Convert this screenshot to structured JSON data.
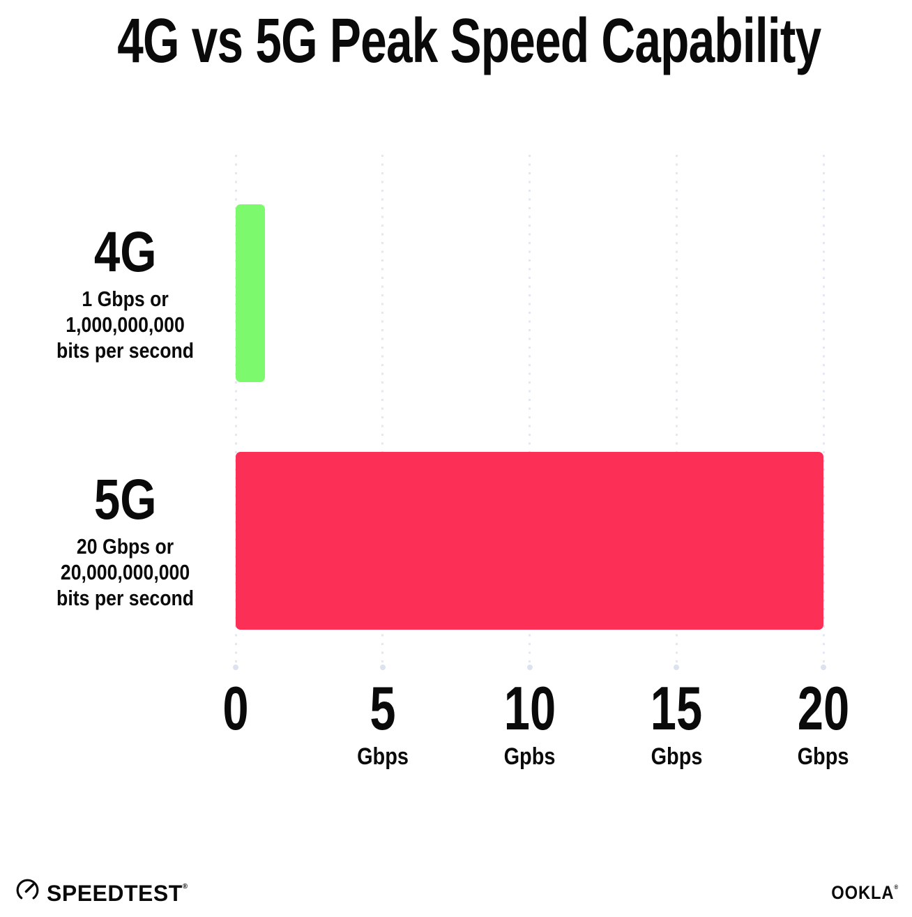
{
  "title": "4G vs 5G Peak Speed Capability",
  "chart_data": {
    "type": "bar",
    "orientation": "horizontal",
    "title": "4G vs 5G Peak Speed Capability",
    "categories": [
      "4G",
      "5G"
    ],
    "values": [
      1,
      20
    ],
    "value_unit": "Gbps",
    "xlim": [
      0,
      20
    ],
    "xticks": [
      {
        "value": "0",
        "unit": ""
      },
      {
        "value": "5",
        "unit": "Gbps"
      },
      {
        "value": "10",
        "unit": "Gpbs"
      },
      {
        "value": "15",
        "unit": "Gbps"
      },
      {
        "value": "20",
        "unit": "Gbps"
      }
    ],
    "grid": "vertical dotted gridlines, light gray",
    "legend": "none",
    "bar_colors": [
      "#7DF96D",
      "#FC3056"
    ],
    "annotations": [
      {
        "category": "4G",
        "lines": [
          "1 Gbps or",
          "1,000,000,000",
          "bits per second"
        ]
      },
      {
        "category": "5G",
        "lines": [
          "20 Gbps or",
          "20,000,000,000",
          "bits per second"
        ]
      }
    ]
  },
  "footer": {
    "speedtest_label": "SPEEDTEST",
    "speedtest_mark": "®",
    "ookla_label": "OOKLA",
    "ookla_mark": "®"
  },
  "colors": {
    "background": "#FFFFFF",
    "text": "#0A0A0A",
    "gridline": "#E3E7F1",
    "bar_4g": "#7DF96D",
    "bar_5g": "#FC3056"
  }
}
